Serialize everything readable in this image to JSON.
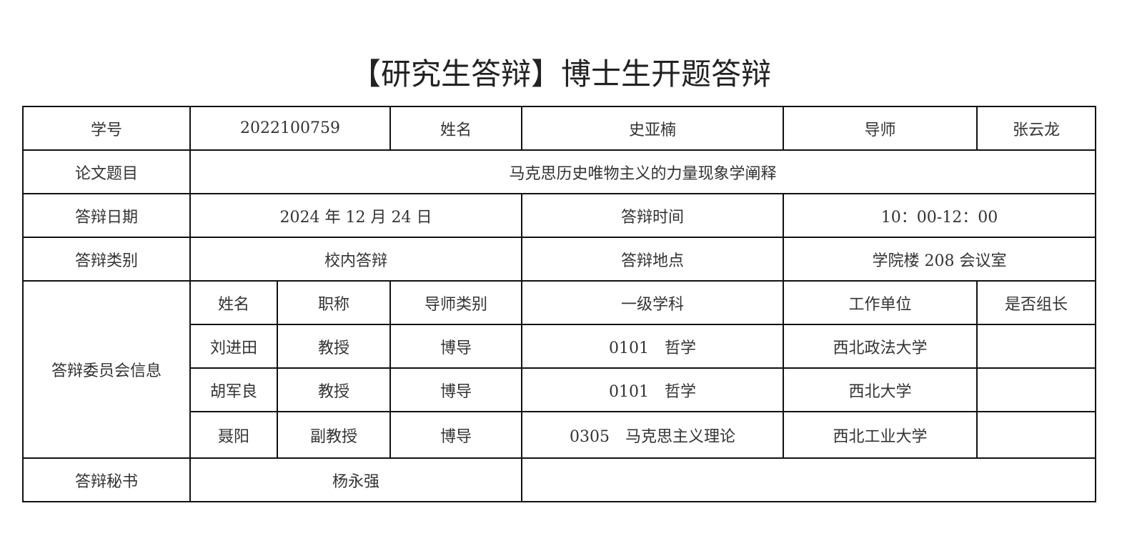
{
  "title": "【研究生答辩】博士生开题答辩",
  "student": {
    "id_label": "学号",
    "id": "2022100759",
    "name_label": "姓名",
    "name": "史亚楠",
    "advisor_label": "导师",
    "advisor": "张云龙",
    "thesis_label": "论文题目",
    "thesis": "马克思历史唯物主义的力量现象学阐释"
  },
  "defense": {
    "date_label": "答辩日期",
    "date": "2024 年 12 月 24 日",
    "time_label": "答辩时间",
    "time": "10：00-12：00",
    "type_label": "答辩类别",
    "type": "校内答辩",
    "location_label": "答辩地点",
    "location": "学院楼 208 会议室",
    "secretary_label": "答辩秘书",
    "secretary": "杨永强"
  },
  "committee": {
    "label": "答辩委员会信息",
    "headers": [
      "姓名",
      "职称",
      "导师类别",
      "一级学科",
      "工作单位",
      "是否组长"
    ],
    "rows": [
      [
        "刘进田",
        "教授",
        "博导",
        "0101　哲学",
        "西北政法大学",
        ""
      ],
      [
        "胡军良",
        "教授",
        "博导",
        "0101　哲学",
        "西北大学",
        ""
      ],
      [
        "聂阳",
        "副教授",
        "博导",
        "0305　马克思主义理论",
        "西北工业大学",
        ""
      ]
    ]
  }
}
